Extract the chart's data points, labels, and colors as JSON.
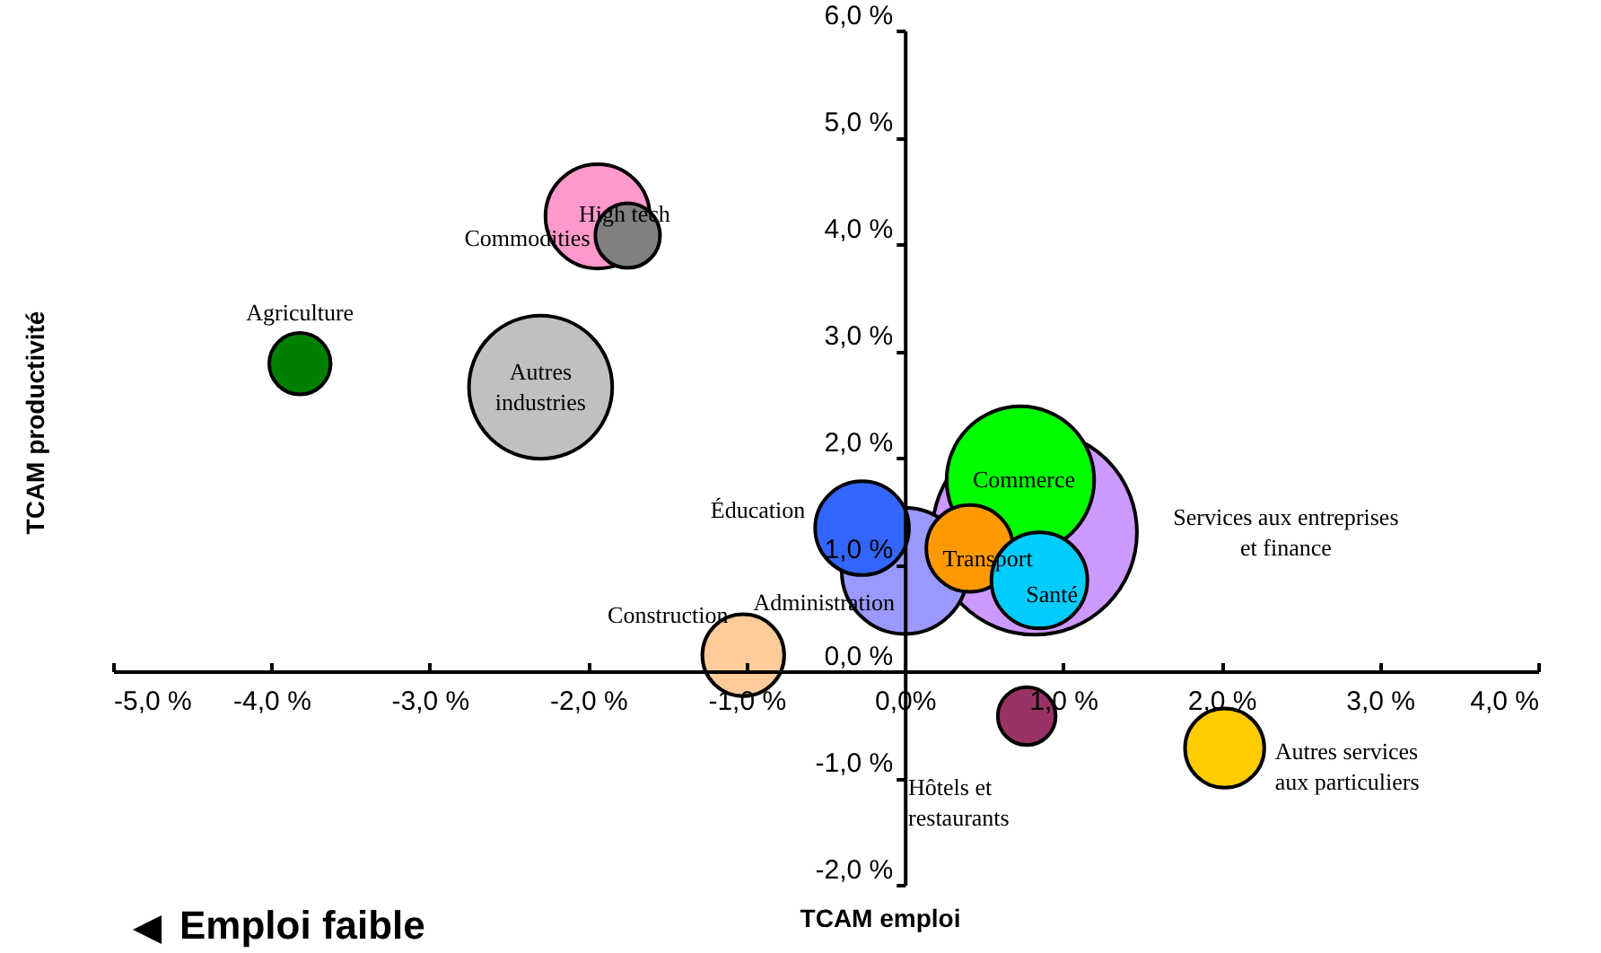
{
  "chart_data": {
    "type": "bubble",
    "xlabel": "TCAM emploi",
    "ylabel": "TCAM productivité",
    "xlim": [
      -5,
      4
    ],
    "ylim": [
      -2,
      6
    ],
    "xticks": [
      {
        "value": -5,
        "label": "-5,0 %"
      },
      {
        "value": -4,
        "label": "-4,0 %"
      },
      {
        "value": -3,
        "label": "-3,0 %"
      },
      {
        "value": -2,
        "label": "-2,0 %"
      },
      {
        "value": -1,
        "label": "-1,0 %"
      },
      {
        "value": 0,
        "label": "0,0%"
      },
      {
        "value": 1,
        "label": "1,0 %"
      },
      {
        "value": 2,
        "label": "2,0 %"
      },
      {
        "value": 3,
        "label": "3,0 %"
      },
      {
        "value": 4,
        "label": "4,0 %"
      }
    ],
    "yticks": [
      {
        "value": -2,
        "label": "-2,0 %"
      },
      {
        "value": -1,
        "label": "-1,0 %"
      },
      {
        "value": 0,
        "label": "0,0 %"
      },
      {
        "value": 1,
        "label": "1,0 %"
      },
      {
        "value": 2,
        "label": "2,0 %"
      },
      {
        "value": 3,
        "label": "3,0 %"
      },
      {
        "value": 4,
        "label": "4,0 %"
      },
      {
        "value": 5,
        "label": "5,0 %"
      },
      {
        "value": 6,
        "label": "6,0 %"
      }
    ],
    "grid": false,
    "legend": false,
    "marker": "circle",
    "series": [
      {
        "name": "Agriculture",
        "color": "#008000",
        "x": [
          -3.82
        ],
        "values": [
          2.88
        ],
        "sizes": [
          0.09
        ]
      },
      {
        "name": "High tech",
        "color": "#ff99cc",
        "x": [
          -1.94
        ],
        "values": [
          4.26
        ],
        "sizes": [
          0.26
        ]
      },
      {
        "name": "Commodities",
        "color": "#808080",
        "x": [
          -1.75
        ],
        "values": [
          4.08
        ],
        "sizes": [
          0.1
        ]
      },
      {
        "name": "Autres\nindustries",
        "color": "#c0c0c0",
        "x": [
          -2.3
        ],
        "values": [
          2.66
        ],
        "sizes": [
          0.49
        ]
      },
      {
        "name": "Construction",
        "color": "#ffcc99",
        "x": [
          -1.02
        ],
        "values": [
          0.15
        ],
        "sizes": [
          0.16
        ]
      },
      {
        "name": "Services aux entreprises\net finance",
        "color": "#cc99ff",
        "x": [
          0.82
        ],
        "values": [
          1.3
        ],
        "sizes": [
          1
        ]
      },
      {
        "name": "Commerce",
        "color": "#00ff00",
        "x": [
          0.73
        ],
        "values": [
          1.79
        ],
        "sizes": [
          0.52
        ]
      },
      {
        "name": "Administration",
        "color": "#9999ff",
        "x": [
          0.0
        ],
        "values": [
          0.94
        ],
        "sizes": [
          0.38
        ]
      },
      {
        "name": "Transport",
        "color": "#ff9900",
        "x": [
          0.41
        ],
        "values": [
          1.15
        ],
        "sizes": [
          0.18
        ]
      },
      {
        "name": "Santé",
        "color": "#00ccff",
        "x": [
          0.85
        ],
        "values": [
          0.85
        ],
        "sizes": [
          0.22
        ]
      },
      {
        "name": "Éducation",
        "color": "#3366ff",
        "x": [
          -0.27
        ],
        "values": [
          1.34
        ],
        "sizes": [
          0.21
        ]
      },
      {
        "name": "Hôtels et\nrestaurants",
        "color": "#993366",
        "x": [
          0.77
        ],
        "values": [
          -0.42
        ],
        "sizes": [
          0.08
        ]
      },
      {
        "name": "Autres services\naux particuliers",
        "color": "#ffcc00",
        "x": [
          2.02
        ],
        "values": [
          -0.72
        ],
        "sizes": [
          0.15
        ]
      }
    ],
    "annotations": [
      "Emploi faible"
    ]
  }
}
